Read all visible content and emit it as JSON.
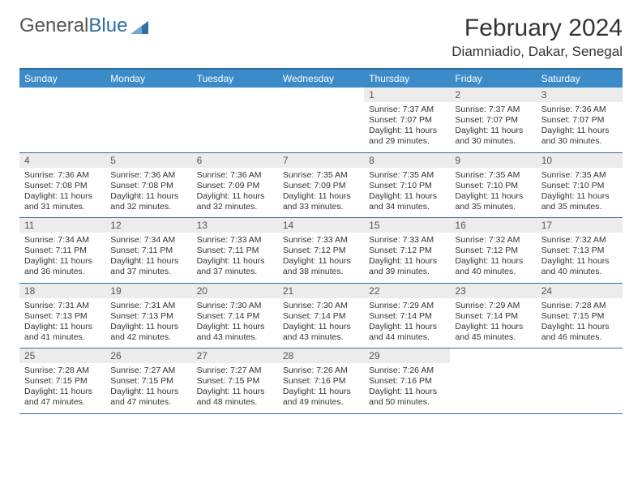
{
  "brand": {
    "part1": "General",
    "part2": "Blue"
  },
  "colors": {
    "accent": "#3b8bc9",
    "border": "#2f6fa7",
    "daynum_bg": "#ececec"
  },
  "title": {
    "month": "February 2024",
    "location": "Diamniadio, Dakar, Senegal"
  },
  "dow": [
    "Sunday",
    "Monday",
    "Tuesday",
    "Wednesday",
    "Thursday",
    "Friday",
    "Saturday"
  ],
  "weeks": [
    [
      {
        "n": "",
        "sr": "",
        "ss": "",
        "dl": ""
      },
      {
        "n": "",
        "sr": "",
        "ss": "",
        "dl": ""
      },
      {
        "n": "",
        "sr": "",
        "ss": "",
        "dl": ""
      },
      {
        "n": "",
        "sr": "",
        "ss": "",
        "dl": ""
      },
      {
        "n": "1",
        "sr": "Sunrise: 7:37 AM",
        "ss": "Sunset: 7:07 PM",
        "dl": "Daylight: 11 hours and 29 minutes."
      },
      {
        "n": "2",
        "sr": "Sunrise: 7:37 AM",
        "ss": "Sunset: 7:07 PM",
        "dl": "Daylight: 11 hours and 30 minutes."
      },
      {
        "n": "3",
        "sr": "Sunrise: 7:36 AM",
        "ss": "Sunset: 7:07 PM",
        "dl": "Daylight: 11 hours and 30 minutes."
      }
    ],
    [
      {
        "n": "4",
        "sr": "Sunrise: 7:36 AM",
        "ss": "Sunset: 7:08 PM",
        "dl": "Daylight: 11 hours and 31 minutes."
      },
      {
        "n": "5",
        "sr": "Sunrise: 7:36 AM",
        "ss": "Sunset: 7:08 PM",
        "dl": "Daylight: 11 hours and 32 minutes."
      },
      {
        "n": "6",
        "sr": "Sunrise: 7:36 AM",
        "ss": "Sunset: 7:09 PM",
        "dl": "Daylight: 11 hours and 32 minutes."
      },
      {
        "n": "7",
        "sr": "Sunrise: 7:35 AM",
        "ss": "Sunset: 7:09 PM",
        "dl": "Daylight: 11 hours and 33 minutes."
      },
      {
        "n": "8",
        "sr": "Sunrise: 7:35 AM",
        "ss": "Sunset: 7:10 PM",
        "dl": "Daylight: 11 hours and 34 minutes."
      },
      {
        "n": "9",
        "sr": "Sunrise: 7:35 AM",
        "ss": "Sunset: 7:10 PM",
        "dl": "Daylight: 11 hours and 35 minutes."
      },
      {
        "n": "10",
        "sr": "Sunrise: 7:35 AM",
        "ss": "Sunset: 7:10 PM",
        "dl": "Daylight: 11 hours and 35 minutes."
      }
    ],
    [
      {
        "n": "11",
        "sr": "Sunrise: 7:34 AM",
        "ss": "Sunset: 7:11 PM",
        "dl": "Daylight: 11 hours and 36 minutes."
      },
      {
        "n": "12",
        "sr": "Sunrise: 7:34 AM",
        "ss": "Sunset: 7:11 PM",
        "dl": "Daylight: 11 hours and 37 minutes."
      },
      {
        "n": "13",
        "sr": "Sunrise: 7:33 AM",
        "ss": "Sunset: 7:11 PM",
        "dl": "Daylight: 11 hours and 37 minutes."
      },
      {
        "n": "14",
        "sr": "Sunrise: 7:33 AM",
        "ss": "Sunset: 7:12 PM",
        "dl": "Daylight: 11 hours and 38 minutes."
      },
      {
        "n": "15",
        "sr": "Sunrise: 7:33 AM",
        "ss": "Sunset: 7:12 PM",
        "dl": "Daylight: 11 hours and 39 minutes."
      },
      {
        "n": "16",
        "sr": "Sunrise: 7:32 AM",
        "ss": "Sunset: 7:12 PM",
        "dl": "Daylight: 11 hours and 40 minutes."
      },
      {
        "n": "17",
        "sr": "Sunrise: 7:32 AM",
        "ss": "Sunset: 7:13 PM",
        "dl": "Daylight: 11 hours and 40 minutes."
      }
    ],
    [
      {
        "n": "18",
        "sr": "Sunrise: 7:31 AM",
        "ss": "Sunset: 7:13 PM",
        "dl": "Daylight: 11 hours and 41 minutes."
      },
      {
        "n": "19",
        "sr": "Sunrise: 7:31 AM",
        "ss": "Sunset: 7:13 PM",
        "dl": "Daylight: 11 hours and 42 minutes."
      },
      {
        "n": "20",
        "sr": "Sunrise: 7:30 AM",
        "ss": "Sunset: 7:14 PM",
        "dl": "Daylight: 11 hours and 43 minutes."
      },
      {
        "n": "21",
        "sr": "Sunrise: 7:30 AM",
        "ss": "Sunset: 7:14 PM",
        "dl": "Daylight: 11 hours and 43 minutes."
      },
      {
        "n": "22",
        "sr": "Sunrise: 7:29 AM",
        "ss": "Sunset: 7:14 PM",
        "dl": "Daylight: 11 hours and 44 minutes."
      },
      {
        "n": "23",
        "sr": "Sunrise: 7:29 AM",
        "ss": "Sunset: 7:14 PM",
        "dl": "Daylight: 11 hours and 45 minutes."
      },
      {
        "n": "24",
        "sr": "Sunrise: 7:28 AM",
        "ss": "Sunset: 7:15 PM",
        "dl": "Daylight: 11 hours and 46 minutes."
      }
    ],
    [
      {
        "n": "25",
        "sr": "Sunrise: 7:28 AM",
        "ss": "Sunset: 7:15 PM",
        "dl": "Daylight: 11 hours and 47 minutes."
      },
      {
        "n": "26",
        "sr": "Sunrise: 7:27 AM",
        "ss": "Sunset: 7:15 PM",
        "dl": "Daylight: 11 hours and 47 minutes."
      },
      {
        "n": "27",
        "sr": "Sunrise: 7:27 AM",
        "ss": "Sunset: 7:15 PM",
        "dl": "Daylight: 11 hours and 48 minutes."
      },
      {
        "n": "28",
        "sr": "Sunrise: 7:26 AM",
        "ss": "Sunset: 7:16 PM",
        "dl": "Daylight: 11 hours and 49 minutes."
      },
      {
        "n": "29",
        "sr": "Sunrise: 7:26 AM",
        "ss": "Sunset: 7:16 PM",
        "dl": "Daylight: 11 hours and 50 minutes."
      },
      {
        "n": "",
        "sr": "",
        "ss": "",
        "dl": ""
      },
      {
        "n": "",
        "sr": "",
        "ss": "",
        "dl": ""
      }
    ]
  ]
}
